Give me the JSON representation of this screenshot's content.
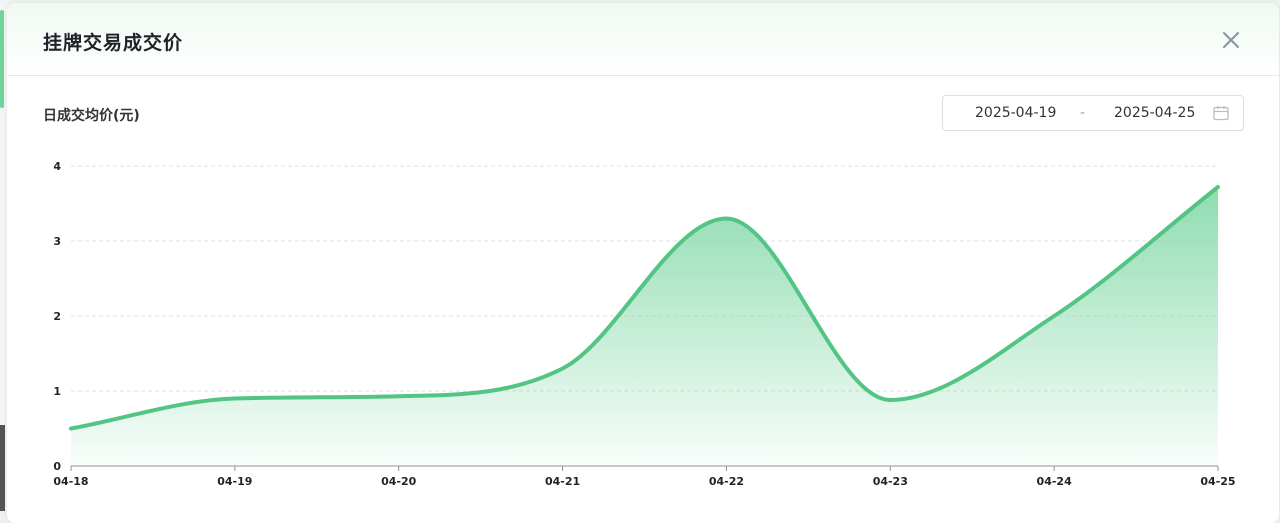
{
  "modal": {
    "title": "挂牌交易成交价",
    "chart_label": "日成交均价(元)"
  },
  "date_range": {
    "start": "2025-04-19",
    "separator": "-",
    "end": "2025-04-25"
  },
  "colors": {
    "line": "#52c483",
    "area_top": "#8fdcb0",
    "grid": "#dcdfe3",
    "header_tint": "#eefaf2"
  },
  "icons": {
    "close": "close-icon",
    "calendar": "calendar-icon"
  },
  "chart_data": {
    "type": "area",
    "title": "",
    "xlabel": "",
    "ylabel": "日成交均价(元)",
    "categories": [
      "04-18",
      "04-19",
      "04-20",
      "04-21",
      "04-22",
      "04-23",
      "04-24",
      "04-25"
    ],
    "values": [
      0.5,
      0.9,
      0.93,
      1.3,
      3.3,
      0.88,
      2.0,
      3.72
    ],
    "ylim": [
      0,
      4
    ],
    "yticks": [
      0,
      1,
      2,
      3,
      4
    ],
    "grid": true,
    "smooth": true
  }
}
